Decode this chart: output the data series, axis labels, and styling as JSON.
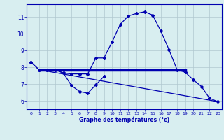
{
  "x": [
    0,
    1,
    2,
    3,
    4,
    5,
    6,
    7,
    8,
    9,
    10,
    11,
    12,
    13,
    14,
    15,
    16,
    17,
    18,
    19,
    20,
    21,
    22,
    23
  ],
  "curve_main": [
    8.3,
    7.85,
    7.85,
    7.85,
    7.65,
    7.6,
    7.6,
    7.6,
    8.55,
    8.55,
    9.5,
    10.55,
    11.05,
    11.2,
    11.3,
    11.1,
    10.15,
    9.05,
    7.85,
    7.7,
    7.25,
    6.85,
    6.15,
    5.95
  ],
  "curve_lower": [
    8.3,
    7.85,
    7.85,
    7.85,
    7.65,
    6.9,
    6.55,
    6.45,
    6.95,
    7.45,
    null,
    null,
    null,
    null,
    null,
    null,
    null,
    null,
    null,
    null,
    null,
    null,
    null,
    null
  ],
  "flat_line_x": [
    1,
    19
  ],
  "flat_line_y": [
    7.85,
    7.85
  ],
  "diag_line_x": [
    1,
    23
  ],
  "diag_line_y": [
    7.85,
    5.95
  ],
  "line_color": "#0000b0",
  "bg_color": "#d8eef0",
  "grid_color": "#b0c8d0",
  "xlabel": "Graphe des températures (°c)",
  "ylim": [
    5.5,
    11.75
  ],
  "xlim": [
    -0.5,
    23.5
  ],
  "yticks": [
    6,
    7,
    8,
    9,
    10,
    11
  ],
  "xticks": [
    0,
    1,
    2,
    3,
    4,
    5,
    6,
    7,
    8,
    9,
    10,
    11,
    12,
    13,
    14,
    15,
    16,
    17,
    18,
    19,
    20,
    21,
    22,
    23
  ]
}
